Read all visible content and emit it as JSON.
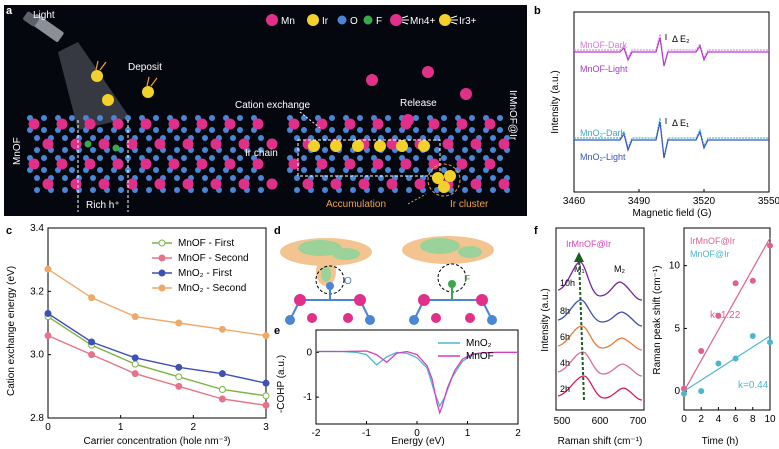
{
  "panels": {
    "a": {
      "letter": "a",
      "legend": [
        {
          "label": "Mn",
          "color": "#e0308a"
        },
        {
          "label": "Ir",
          "color": "#f2d22a"
        },
        {
          "label": "O",
          "color": "#4a86d4"
        },
        {
          "label": "F",
          "color": "#3aa84a"
        },
        {
          "label": "Mn4+",
          "color": "#e0308a"
        },
        {
          "label": "Ir3+",
          "color": "#f2d22a"
        }
      ],
      "labels": {
        "light": "Light",
        "deposit": "Deposit",
        "cation_exchange": "Cation exchange",
        "release": "Release",
        "ir_chain": "Ir chain",
        "rich_h": "Rich h⁺",
        "accumulation": "Accumulation",
        "ir_cluster": "Ir cluster",
        "mnof": "MnOF",
        "irmnof_ir": "IrMnOF@Ir"
      }
    },
    "b": {
      "letter": "b",
      "xlabel": "Magnetic field (G)",
      "ylabel": "Intensity (a.u.)",
      "x_ticks": [
        "3460",
        "3490",
        "3520",
        "3550"
      ],
      "labels": {
        "mnof_dark": "MnOF-Dark",
        "mnof_light": "MnOF-Light",
        "mno2_dark": "MnO₂-Dark",
        "mno2_light": "MnO₂-Light",
        "de2": "Δ E₂",
        "de1": "Δ E₁"
      }
    },
    "d": {
      "letter": "d",
      "o_label": "O",
      "f_label": "F"
    },
    "f": {
      "letter": "f",
      "title": "IrMnOF@Ir",
      "m1": "M₁",
      "m2": "M₂",
      "times": [
        "10h",
        "8h",
        "6h",
        "4h",
        "2h"
      ]
    }
  },
  "chart_data": [
    {
      "panel": "c",
      "letter": "c",
      "type": "line",
      "xlabel": "Carrier concentration (hole nm⁻³)",
      "ylabel": "Cation exchange energy (eV)",
      "xlim": [
        0,
        3
      ],
      "ylim": [
        2.8,
        3.4
      ],
      "x_ticks": [
        "0",
        "1",
        "2",
        "3"
      ],
      "y_ticks": [
        "2.8",
        "3.0",
        "3.2",
        "3.4"
      ],
      "grid": false,
      "legend": "top-right",
      "x": [
        0,
        0.6,
        1.2,
        1.8,
        2.4,
        3.0
      ],
      "series": [
        {
          "name": "MnOF - First",
          "color": "#7cb342",
          "values": [
            3.12,
            3.03,
            2.97,
            2.93,
            2.89,
            2.87
          ]
        },
        {
          "name": "MnOF - Second",
          "color": "#e57389",
          "values": [
            3.06,
            3.0,
            2.94,
            2.9,
            2.86,
            2.84
          ]
        },
        {
          "name": "MnO₂ - First",
          "color": "#3f51b5",
          "values": [
            3.13,
            3.04,
            2.99,
            2.96,
            2.94,
            2.91
          ]
        },
        {
          "name": "MnO₂ - Second",
          "color": "#f0a868",
          "values": [
            3.27,
            3.18,
            3.12,
            3.1,
            3.08,
            3.06
          ]
        }
      ]
    },
    {
      "panel": "e",
      "letter": "e",
      "type": "line",
      "xlabel": "Energy (eV)",
      "ylabel": "-COHP (a.u.)",
      "xlim": [
        -2,
        2
      ],
      "ylim": [
        -1.6,
        0.5
      ],
      "x_ticks": [
        "-2",
        "-1",
        "0",
        "1",
        "2"
      ],
      "y_ticks": [
        "0",
        "-1"
      ],
      "grid": false,
      "legend": "top-right",
      "series": [
        {
          "name": "MnO₂",
          "color": "#4fb6cf",
          "x": [
            -2,
            -1.5,
            -1.2,
            -1.0,
            -0.8,
            -0.6,
            -0.4,
            -0.2,
            0,
            0.2,
            0.35,
            0.45,
            0.55,
            0.7,
            0.9,
            1.1,
            1.3,
            1.6,
            2.0
          ],
          "values": [
            0.02,
            0.02,
            0.0,
            -0.05,
            -0.28,
            -0.1,
            0.0,
            -0.02,
            -0.12,
            -0.35,
            -0.9,
            -1.2,
            -1.0,
            -0.55,
            -0.2,
            -0.05,
            -0.01,
            0,
            0
          ]
        },
        {
          "name": "MnOF",
          "color": "#d63fc2",
          "x": [
            -2,
            -1.5,
            -1.0,
            -0.8,
            -0.6,
            -0.4,
            -0.2,
            0,
            0.2,
            0.3,
            0.4,
            0.45,
            0.5,
            0.6,
            0.75,
            0.9,
            1.1,
            1.3,
            1.6,
            2.0
          ],
          "values": [
            0.02,
            0.02,
            0.03,
            -0.05,
            -0.22,
            -0.02,
            0.02,
            -0.05,
            -0.3,
            -0.6,
            -1.15,
            -1.35,
            -1.2,
            -0.8,
            -0.4,
            -0.15,
            -0.04,
            -0.01,
            0,
            0
          ]
        }
      ]
    },
    {
      "panel": "f-right",
      "type": "scatter",
      "xlabel": "Time (h)",
      "ylabel": "Raman peak shift (cm⁻¹)",
      "xlim": [
        0,
        10
      ],
      "ylim": [
        -1.5,
        13
      ],
      "x_ticks": [
        "0",
        "2",
        "4",
        "6",
        "8",
        "10"
      ],
      "y_ticks": [
        "0",
        "5",
        "10"
      ],
      "grid": false,
      "legend": "top-left",
      "series": [
        {
          "name": "IrMnOF@Ir",
          "color": "#e0608e",
          "x": [
            0,
            2,
            4,
            6,
            8,
            10
          ],
          "values": [
            0.2,
            3.2,
            6.0,
            8.6,
            8.8,
            11.6
          ],
          "fit": {
            "k_label": "k=1.22",
            "slope": 1.22,
            "intercept": 0.0
          }
        },
        {
          "name": "MnOF@Ir",
          "color": "#4fb6cf",
          "x": [
            0,
            2,
            4,
            6,
            8,
            10
          ],
          "values": [
            -0.2,
            0.0,
            2.2,
            2.6,
            4.4,
            3.9
          ],
          "fit": {
            "k_label": "k=0.44",
            "slope": 0.44,
            "intercept": 0.0
          }
        }
      ]
    },
    {
      "panel": "f-left",
      "type": "line",
      "xlabel": "Raman shift (cm⁻¹)",
      "ylabel": "Intensity (a.u.)",
      "xlim": [
        500,
        700
      ],
      "x_ticks": [
        "500",
        "600",
        "700"
      ]
    }
  ]
}
